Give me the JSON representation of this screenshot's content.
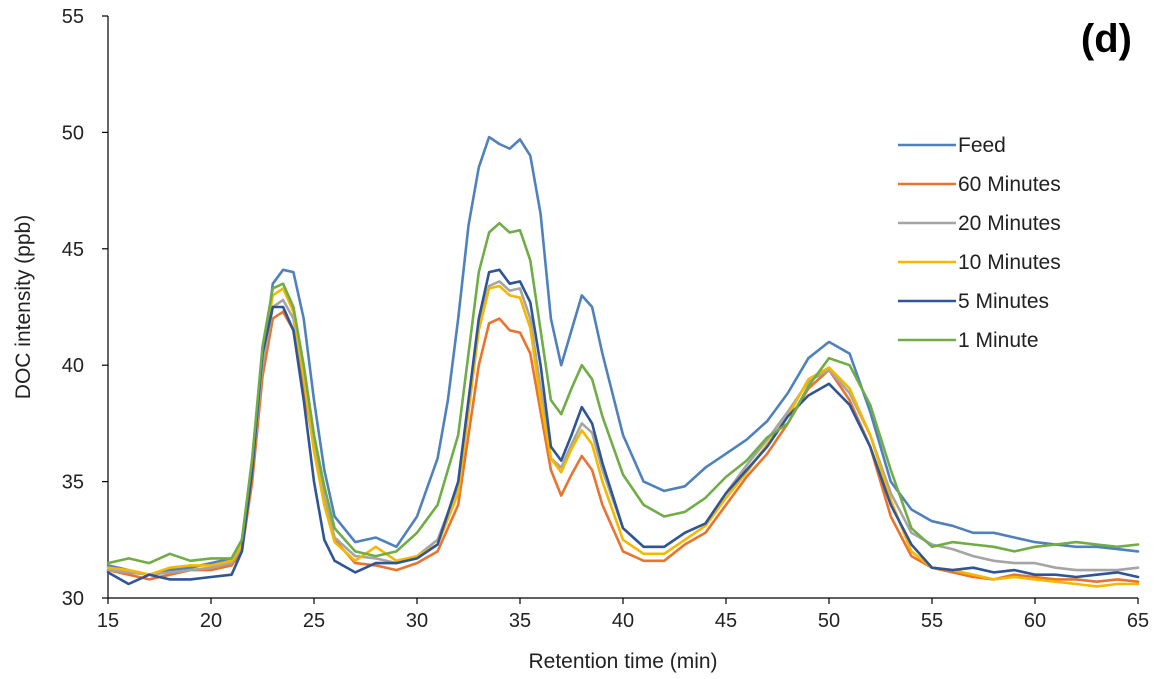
{
  "chart_data": {
    "type": "line",
    "panel_label": "(d)",
    "xlabel": "Retention time (min)",
    "ylabel": "DOC intensity (ppb)",
    "xlim": [
      15,
      65
    ],
    "ylim": [
      30,
      55
    ],
    "xticks": [
      15,
      20,
      25,
      30,
      35,
      40,
      45,
      50,
      55,
      60,
      65
    ],
    "yticks": [
      30,
      35,
      40,
      45,
      50,
      55
    ],
    "grid": false,
    "legend_position": "right",
    "series": [
      {
        "name": "Feed",
        "color": "#4f81bd",
        "x": [
          15,
          16,
          17,
          18,
          19,
          20,
          21,
          21.5,
          22,
          22.5,
          23,
          23.5,
          24,
          24.5,
          25,
          25.5,
          26,
          27,
          28,
          29,
          30,
          31,
          31.5,
          32,
          32.5,
          33,
          33.5,
          34,
          34.5,
          35,
          35.5,
          36,
          36.5,
          37,
          37.5,
          38,
          38.5,
          39,
          40,
          41,
          42,
          43,
          44,
          45,
          46,
          47,
          48,
          49,
          50,
          51,
          52,
          53,
          54,
          55,
          56,
          57,
          58,
          59,
          60,
          61,
          62,
          63,
          64,
          65
        ],
        "y": [
          31.4,
          31.2,
          31.0,
          31.2,
          31.3,
          31.5,
          31.7,
          32.5,
          35.5,
          40.0,
          43.5,
          44.1,
          44.0,
          42.0,
          38.5,
          35.5,
          33.5,
          32.4,
          32.6,
          32.2,
          33.5,
          36.0,
          38.5,
          42.0,
          46.0,
          48.5,
          49.8,
          49.5,
          49.3,
          49.7,
          49.0,
          46.5,
          42.0,
          40.0,
          41.5,
          43.0,
          42.5,
          40.5,
          37.0,
          35.0,
          34.6,
          34.8,
          35.6,
          36.2,
          36.8,
          37.6,
          38.8,
          40.3,
          41.0,
          40.5,
          38.0,
          35.0,
          33.8,
          33.3,
          33.1,
          32.8,
          32.8,
          32.6,
          32.4,
          32.3,
          32.2,
          32.2,
          32.1,
          32.0
        ]
      },
      {
        "name": "60 Minutes",
        "color": "#e8742f",
        "x": [
          15,
          16,
          17,
          18,
          19,
          20,
          21,
          21.5,
          22,
          22.5,
          23,
          23.5,
          24,
          24.5,
          25,
          25.5,
          26,
          27,
          28,
          29,
          30,
          31,
          32,
          32.5,
          33,
          33.5,
          34,
          34.5,
          35,
          35.5,
          36,
          36.5,
          37,
          37.5,
          38,
          38.5,
          39,
          40,
          41,
          42,
          43,
          44,
          45,
          46,
          47,
          48,
          49,
          50,
          51,
          52,
          53,
          54,
          55,
          56,
          57,
          58,
          59,
          60,
          61,
          62,
          63,
          64,
          65
        ],
        "y": [
          31.2,
          31.0,
          30.8,
          31.0,
          31.2,
          31.2,
          31.4,
          32.0,
          35.0,
          39.5,
          42.0,
          42.3,
          41.5,
          39.0,
          36.5,
          34.0,
          32.5,
          31.5,
          31.4,
          31.2,
          31.5,
          32.0,
          34.0,
          37.0,
          40.0,
          41.8,
          42.0,
          41.5,
          41.4,
          40.5,
          38.0,
          35.5,
          34.4,
          35.3,
          36.1,
          35.5,
          34.0,
          32.0,
          31.6,
          31.6,
          32.3,
          32.8,
          34.0,
          35.2,
          36.2,
          37.5,
          39.0,
          39.8,
          38.5,
          36.5,
          33.5,
          31.8,
          31.3,
          31.1,
          30.9,
          30.8,
          31.0,
          30.9,
          30.8,
          30.8,
          30.7,
          30.8,
          30.7
        ]
      },
      {
        "name": "20 Minutes",
        "color": "#a5a5a5",
        "x": [
          15,
          16,
          17,
          18,
          19,
          20,
          21,
          21.5,
          22,
          22.5,
          23,
          23.5,
          24,
          24.5,
          25,
          25.5,
          26,
          27,
          28,
          29,
          30,
          31,
          32,
          32.5,
          33,
          33.5,
          34,
          34.5,
          35,
          35.5,
          36,
          36.5,
          37,
          37.5,
          38,
          38.5,
          39,
          40,
          41,
          42,
          43,
          44,
          45,
          46,
          47,
          48,
          49,
          50,
          51,
          52,
          53,
          54,
          55,
          56,
          57,
          58,
          59,
          60,
          61,
          62,
          63,
          64,
          65
        ],
        "y": [
          31.2,
          31.1,
          31.0,
          31.1,
          31.2,
          31.3,
          31.5,
          32.2,
          35.5,
          40.0,
          42.5,
          42.8,
          42.0,
          39.5,
          36.5,
          34.3,
          32.6,
          31.8,
          31.7,
          31.5,
          31.8,
          32.5,
          34.8,
          38.2,
          41.8,
          43.4,
          43.6,
          43.2,
          43.3,
          42.0,
          39.0,
          36.0,
          35.6,
          36.6,
          37.5,
          37.1,
          35.5,
          33.0,
          32.2,
          32.2,
          32.8,
          33.2,
          34.5,
          35.7,
          36.8,
          38.0,
          39.3,
          39.8,
          38.8,
          37.0,
          34.5,
          32.8,
          32.3,
          32.1,
          31.8,
          31.6,
          31.5,
          31.5,
          31.3,
          31.2,
          31.2,
          31.2,
          31.3
        ]
      },
      {
        "name": "10 Minutes",
        "color": "#f5b800",
        "x": [
          15,
          16,
          17,
          18,
          19,
          20,
          21,
          21.5,
          22,
          22.5,
          23,
          23.5,
          24,
          24.5,
          25,
          25.5,
          26,
          27,
          28,
          29,
          30,
          31,
          32,
          32.5,
          33,
          33.5,
          34,
          34.5,
          35,
          35.5,
          36,
          36.5,
          37,
          37.5,
          38,
          38.5,
          39,
          40,
          41,
          42,
          43,
          44,
          45,
          46,
          47,
          48,
          49,
          50,
          51,
          52,
          53,
          54,
          55,
          56,
          57,
          58,
          59,
          60,
          61,
          62,
          63,
          64,
          65
        ],
        "y": [
          31.3,
          31.2,
          31.0,
          31.3,
          31.4,
          31.4,
          31.6,
          32.3,
          36.0,
          40.5,
          43.0,
          43.3,
          42.3,
          39.5,
          36.3,
          34.0,
          32.4,
          31.6,
          32.2,
          31.6,
          31.8,
          32.3,
          34.5,
          38.0,
          41.5,
          43.3,
          43.4,
          43.0,
          42.9,
          41.6,
          38.5,
          36.0,
          35.4,
          36.4,
          37.2,
          36.6,
          35.0,
          32.5,
          31.9,
          31.9,
          32.5,
          33.1,
          34.3,
          35.4,
          36.6,
          37.8,
          39.4,
          39.9,
          39.0,
          37.0,
          34.2,
          32.0,
          31.3,
          31.2,
          31.0,
          30.8,
          30.9,
          30.8,
          30.7,
          30.6,
          30.5,
          30.6,
          30.6
        ]
      },
      {
        "name": "5 Minutes",
        "color": "#2f5597",
        "x": [
          15,
          16,
          17,
          18,
          19,
          20,
          21,
          21.5,
          22,
          22.5,
          23,
          23.5,
          24,
          24.5,
          25,
          25.5,
          26,
          27,
          28,
          29,
          30,
          31,
          32,
          32.5,
          33,
          33.5,
          34,
          34.5,
          35,
          35.5,
          36,
          36.5,
          37,
          37.5,
          38,
          38.5,
          39,
          40,
          41,
          42,
          43,
          44,
          45,
          46,
          47,
          48,
          49,
          50,
          51,
          52,
          53,
          54,
          55,
          56,
          57,
          58,
          59,
          60,
          61,
          62,
          63,
          64,
          65
        ],
        "y": [
          31.1,
          30.6,
          31.0,
          30.8,
          30.8,
          30.9,
          31.0,
          32.0,
          35.5,
          40.5,
          42.5,
          42.5,
          41.5,
          38.5,
          35.0,
          32.5,
          31.6,
          31.1,
          31.5,
          31.5,
          31.7,
          32.3,
          35.0,
          38.5,
          42.0,
          44.0,
          44.1,
          43.5,
          43.6,
          42.7,
          40.0,
          36.5,
          35.9,
          37.0,
          38.2,
          37.5,
          35.8,
          33.0,
          32.2,
          32.2,
          32.8,
          33.2,
          34.5,
          35.5,
          36.5,
          37.8,
          38.7,
          39.2,
          38.3,
          36.5,
          34.0,
          32.3,
          31.3,
          31.2,
          31.3,
          31.1,
          31.2,
          31.0,
          31.0,
          30.9,
          31.0,
          31.1,
          30.9
        ]
      },
      {
        "name": "1 Minute",
        "color": "#70ad47",
        "x": [
          15,
          16,
          17,
          18,
          19,
          20,
          21,
          21.5,
          22,
          22.5,
          23,
          23.5,
          24,
          24.5,
          25,
          25.5,
          26,
          27,
          28,
          29,
          30,
          31,
          32,
          32.5,
          33,
          33.5,
          34,
          34.5,
          35,
          35.5,
          36,
          36.5,
          37,
          37.5,
          38,
          38.5,
          39,
          40,
          41,
          42,
          43,
          44,
          45,
          46,
          47,
          48,
          49,
          50,
          51,
          52,
          53,
          54,
          55,
          56,
          57,
          58,
          59,
          60,
          61,
          62,
          63,
          64,
          65
        ],
        "y": [
          31.5,
          31.7,
          31.5,
          31.9,
          31.6,
          31.7,
          31.7,
          32.5,
          36.0,
          40.8,
          43.3,
          43.5,
          42.5,
          40.0,
          37.0,
          34.8,
          33.0,
          32.0,
          31.8,
          32.0,
          32.8,
          34.0,
          37.0,
          40.5,
          44.0,
          45.7,
          46.1,
          45.7,
          45.8,
          44.5,
          41.5,
          38.5,
          37.9,
          39.0,
          40.0,
          39.4,
          37.8,
          35.3,
          34.0,
          33.5,
          33.7,
          34.3,
          35.2,
          35.9,
          36.9,
          37.5,
          39.1,
          40.3,
          40.0,
          38.3,
          35.5,
          33.0,
          32.2,
          32.4,
          32.3,
          32.2,
          32.0,
          32.2,
          32.3,
          32.4,
          32.3,
          32.2,
          32.3
        ]
      }
    ]
  }
}
